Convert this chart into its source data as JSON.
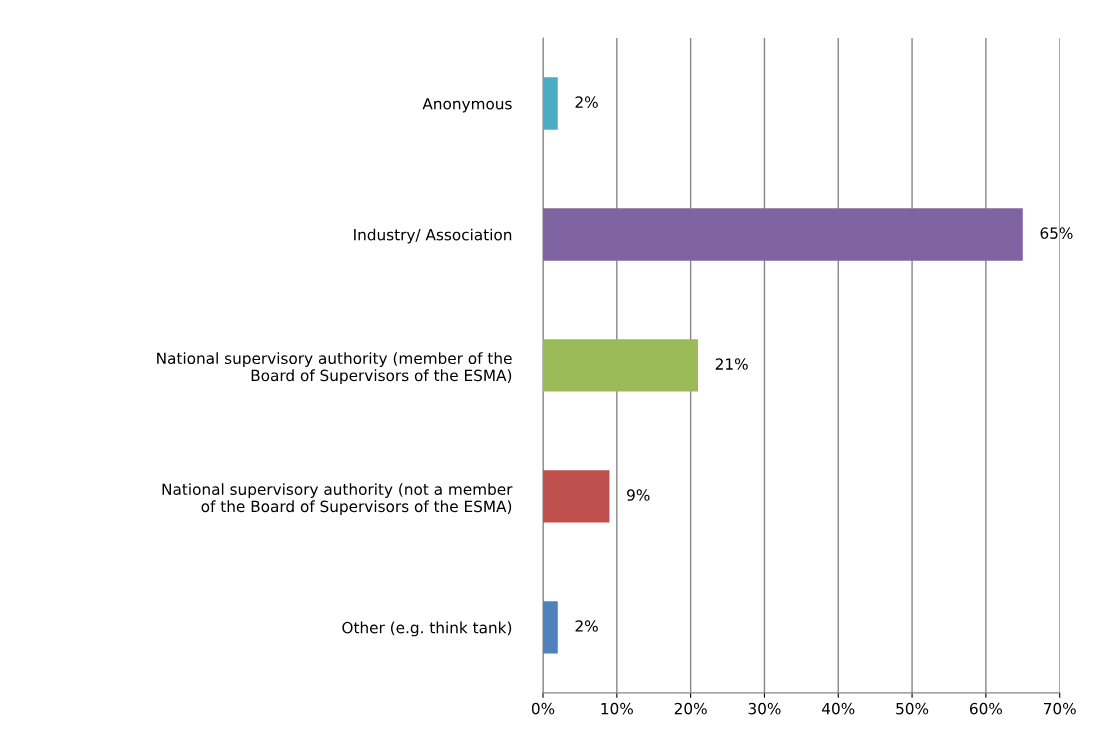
{
  "chart_data": {
    "type": "bar",
    "orientation": "horizontal",
    "categories": [
      "Anonymous",
      "Industry/ Association",
      "National supervisory authority (member of the\nBoard of Supervisors of the ESMA)",
      "National supervisory authority (not a member\nof the Board of Supervisors of the ESMA)",
      "Other (e.g. think tank)"
    ],
    "values": [
      2,
      65,
      21,
      9,
      2
    ],
    "colors": [
      "#4bacc6",
      "#8064a2",
      "#9bbb59",
      "#c0504d",
      "#4f81bd"
    ],
    "value_labels": [
      "2%",
      "65%",
      "21%",
      "9%",
      "2%"
    ],
    "xlim": [
      0,
      70
    ],
    "xticks": [
      {
        "value": 0,
        "label": "0%"
      },
      {
        "value": 10,
        "label": "10%"
      },
      {
        "value": 20,
        "label": "20%"
      },
      {
        "value": 30,
        "label": "30%"
      },
      {
        "value": 40,
        "label": "40%"
      },
      {
        "value": 50,
        "label": "50%"
      },
      {
        "value": 60,
        "label": "60%"
      },
      {
        "value": 70,
        "label": "70%"
      }
    ],
    "grid": "x"
  }
}
